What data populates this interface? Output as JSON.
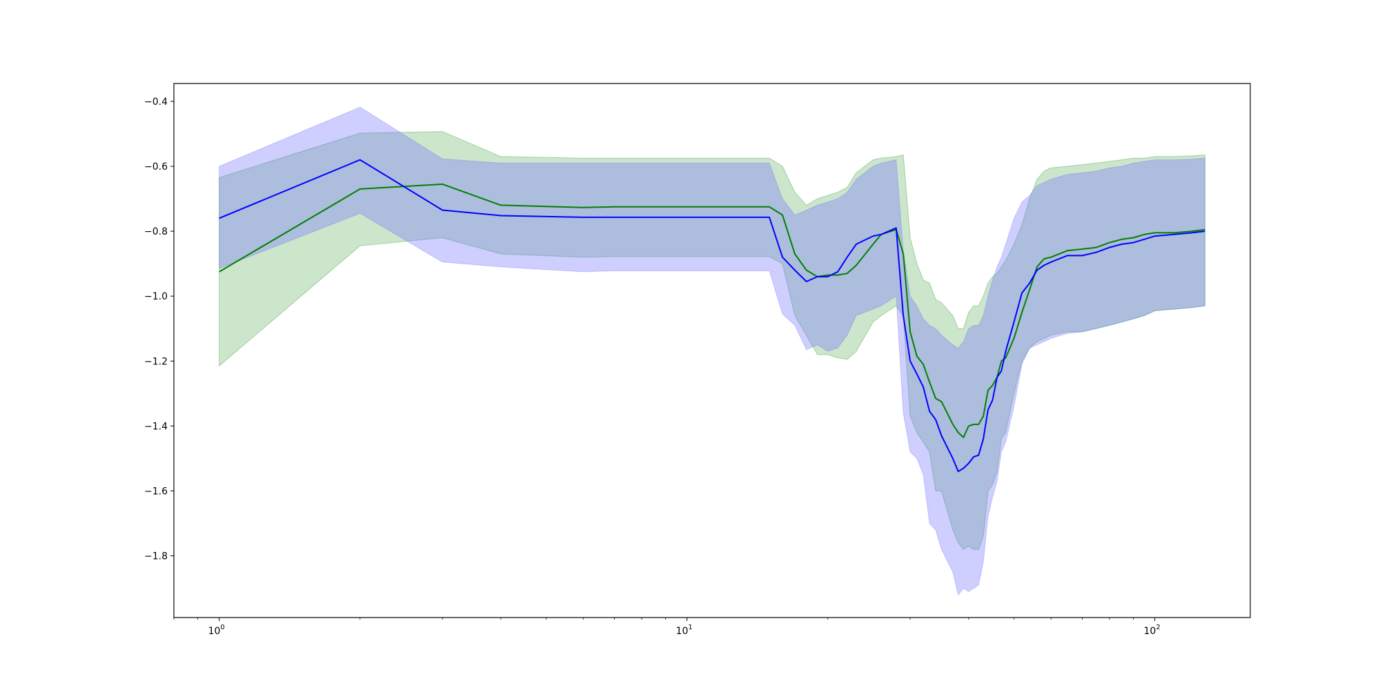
{
  "chart_data": {
    "type": "line",
    "title": "",
    "xlabel": "",
    "ylabel": "",
    "xscale": "log",
    "xlim": [
      0.8,
      160
    ],
    "ylim": [
      -1.99,
      -0.345
    ],
    "grid": false,
    "legend": "none",
    "y_ticks": [
      -0.4,
      -0.6,
      -0.8,
      -1.0,
      -1.2,
      -1.4,
      -1.6,
      -1.8
    ],
    "y_tick_labels": [
      "−0.4",
      "−0.6",
      "−0.8",
      "−1.0",
      "−1.2",
      "−1.4",
      "−1.6",
      "−1.8"
    ],
    "x_ticks": [
      {
        "value": 1,
        "base": "10",
        "exp": "0"
      },
      {
        "value": 10,
        "base": "10",
        "exp": "1"
      },
      {
        "value": 100,
        "base": "10",
        "exp": "2"
      }
    ],
    "series": [
      {
        "color": "#008000",
        "band_color": "#008000",
        "x": [
          1,
          2,
          3,
          4,
          6,
          7,
          10,
          15,
          16,
          17,
          18,
          19,
          20,
          21,
          22,
          23,
          25,
          26,
          28,
          29,
          30,
          31,
          32,
          33,
          34,
          35,
          37,
          38,
          39,
          40,
          41,
          42,
          43,
          44,
          45,
          46,
          47,
          48,
          50,
          52,
          54,
          56,
          58,
          60,
          65,
          70,
          75,
          80,
          85,
          90,
          95,
          100,
          110,
          120,
          128
        ],
        "y": [
          -0.925,
          -0.67,
          -0.655,
          -0.72,
          -0.727,
          -0.725,
          -0.725,
          -0.725,
          -0.75,
          -0.87,
          -0.92,
          -0.94,
          -0.935,
          -0.935,
          -0.93,
          -0.905,
          -0.84,
          -0.81,
          -0.795,
          -0.87,
          -1.11,
          -1.185,
          -1.21,
          -1.265,
          -1.315,
          -1.325,
          -1.395,
          -1.42,
          -1.435,
          -1.4,
          -1.395,
          -1.395,
          -1.37,
          -1.29,
          -1.275,
          -1.25,
          -1.2,
          -1.19,
          -1.13,
          -1.05,
          -0.98,
          -0.91,
          -0.885,
          -0.88,
          -0.86,
          -0.855,
          -0.85,
          -0.835,
          -0.825,
          -0.82,
          -0.81,
          -0.805,
          -0.805,
          -0.8,
          -0.795
        ],
        "upper": [
          -0.635,
          -0.498,
          -0.493,
          -0.57,
          -0.575,
          -0.575,
          -0.575,
          -0.575,
          -0.6,
          -0.68,
          -0.72,
          -0.7,
          -0.69,
          -0.68,
          -0.665,
          -0.62,
          -0.58,
          -0.575,
          -0.57,
          -0.565,
          -0.82,
          -0.9,
          -0.95,
          -0.96,
          -1.01,
          -1.02,
          -1.06,
          -1.1,
          -1.1,
          -1.05,
          -1.03,
          -1.03,
          -1.0,
          -0.96,
          -0.94,
          -0.93,
          -0.91,
          -0.89,
          -0.84,
          -0.78,
          -0.7,
          -0.64,
          -0.615,
          -0.605,
          -0.6,
          -0.595,
          -0.59,
          -0.585,
          -0.58,
          -0.575,
          -0.575,
          -0.57,
          -0.57,
          -0.568,
          -0.565
        ],
        "lower": [
          -1.215,
          -0.845,
          -0.82,
          -0.87,
          -0.88,
          -0.878,
          -0.878,
          -0.878,
          -0.9,
          -1.06,
          -1.12,
          -1.18,
          -1.18,
          -1.19,
          -1.195,
          -1.17,
          -1.08,
          -1.06,
          -1.03,
          -1.06,
          -1.37,
          -1.42,
          -1.45,
          -1.48,
          -1.6,
          -1.6,
          -1.72,
          -1.76,
          -1.78,
          -1.77,
          -1.78,
          -1.78,
          -1.74,
          -1.6,
          -1.58,
          -1.54,
          -1.44,
          -1.42,
          -1.3,
          -1.2,
          -1.16,
          -1.14,
          -1.13,
          -1.12,
          -1.11,
          -1.11,
          -1.1,
          -1.09,
          -1.08,
          -1.07,
          -1.06,
          -1.045,
          -1.04,
          -1.035,
          -1.03
        ]
      },
      {
        "color": "#0000ff",
        "band_color": "#6a6aff",
        "x": [
          1,
          2,
          3,
          4,
          6,
          7,
          10,
          15,
          16,
          17,
          18,
          19,
          20,
          21,
          22,
          23,
          25,
          26,
          28,
          29,
          30,
          31,
          32,
          33,
          34,
          35,
          37,
          38,
          39,
          40,
          41,
          42,
          43,
          44,
          45,
          46,
          47,
          48,
          50,
          52,
          54,
          56,
          58,
          60,
          65,
          70,
          75,
          80,
          85,
          90,
          95,
          100,
          110,
          120,
          128
        ],
        "y": [
          -0.76,
          -0.58,
          -0.735,
          -0.752,
          -0.757,
          -0.757,
          -0.757,
          -0.757,
          -0.88,
          -0.92,
          -0.955,
          -0.94,
          -0.94,
          -0.925,
          -0.88,
          -0.84,
          -0.815,
          -0.81,
          -0.79,
          -1.06,
          -1.2,
          -1.24,
          -1.28,
          -1.355,
          -1.38,
          -1.43,
          -1.5,
          -1.54,
          -1.53,
          -1.515,
          -1.495,
          -1.49,
          -1.44,
          -1.35,
          -1.32,
          -1.25,
          -1.23,
          -1.17,
          -1.08,
          -0.99,
          -0.96,
          -0.92,
          -0.905,
          -0.895,
          -0.875,
          -0.875,
          -0.865,
          -0.85,
          -0.84,
          -0.835,
          -0.825,
          -0.815,
          -0.81,
          -0.805,
          -0.8
        ],
        "upper": [
          -0.6,
          -0.418,
          -0.577,
          -0.59,
          -0.59,
          -0.59,
          -0.59,
          -0.59,
          -0.7,
          -0.75,
          -0.735,
          -0.72,
          -0.71,
          -0.7,
          -0.68,
          -0.64,
          -0.6,
          -0.59,
          -0.58,
          -0.86,
          -1.0,
          -1.03,
          -1.07,
          -1.09,
          -1.1,
          -1.12,
          -1.15,
          -1.16,
          -1.14,
          -1.1,
          -1.09,
          -1.09,
          -1.06,
          -1.0,
          -0.95,
          -0.91,
          -0.88,
          -0.84,
          -0.76,
          -0.71,
          -0.69,
          -0.66,
          -0.65,
          -0.64,
          -0.625,
          -0.62,
          -0.615,
          -0.605,
          -0.6,
          -0.59,
          -0.585,
          -0.58,
          -0.58,
          -0.578,
          -0.575
        ],
        "lower": [
          -0.915,
          -0.745,
          -0.895,
          -0.91,
          -0.925,
          -0.922,
          -0.922,
          -0.922,
          -1.055,
          -1.09,
          -1.165,
          -1.15,
          -1.17,
          -1.16,
          -1.12,
          -1.06,
          -1.04,
          -1.03,
          -1.0,
          -1.36,
          -1.48,
          -1.5,
          -1.55,
          -1.7,
          -1.72,
          -1.78,
          -1.85,
          -1.92,
          -1.9,
          -1.91,
          -1.9,
          -1.89,
          -1.82,
          -1.68,
          -1.62,
          -1.57,
          -1.48,
          -1.45,
          -1.34,
          -1.21,
          -1.16,
          -1.15,
          -1.14,
          -1.13,
          -1.115,
          -1.11,
          -1.1,
          -1.09,
          -1.08,
          -1.07,
          -1.06,
          -1.045,
          -1.04,
          -1.035,
          -1.03
        ]
      }
    ]
  }
}
